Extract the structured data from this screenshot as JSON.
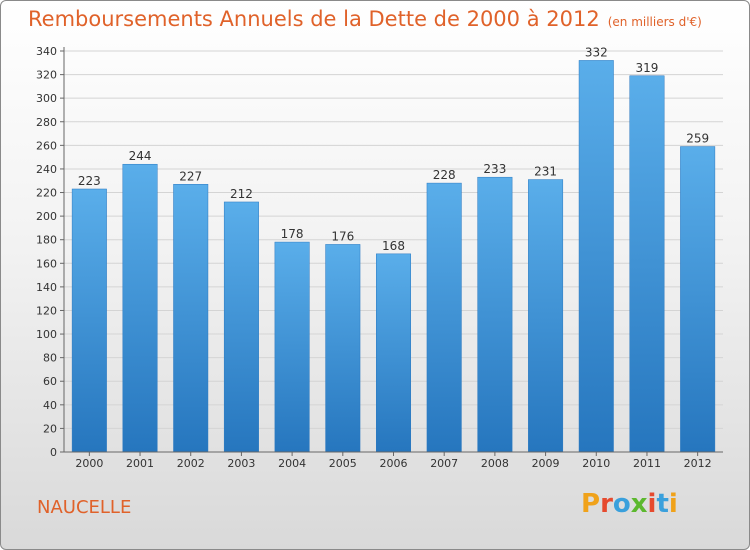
{
  "chart_data": {
    "type": "bar",
    "title": "Remboursements Annuels de la Dette de 2000 à 2012",
    "unit_note": "(en milliers d'€)",
    "categories": [
      "2000",
      "2001",
      "2002",
      "2003",
      "2004",
      "2005",
      "2006",
      "2007",
      "2008",
      "2009",
      "2010",
      "2011",
      "2012"
    ],
    "values": [
      223,
      244,
      227,
      212,
      178,
      176,
      168,
      228,
      233,
      231,
      332,
      319,
      259
    ],
    "ylim": [
      0,
      340
    ],
    "yticks": [
      0,
      20,
      40,
      60,
      80,
      100,
      120,
      140,
      160,
      180,
      200,
      220,
      240,
      260,
      280,
      300,
      320,
      340
    ],
    "xlabel": "",
    "ylabel": "",
    "grid": true,
    "bar_color": "#3a8fd6"
  },
  "footer": {
    "city": "NAUCELLE",
    "logo": "Proxiti"
  }
}
